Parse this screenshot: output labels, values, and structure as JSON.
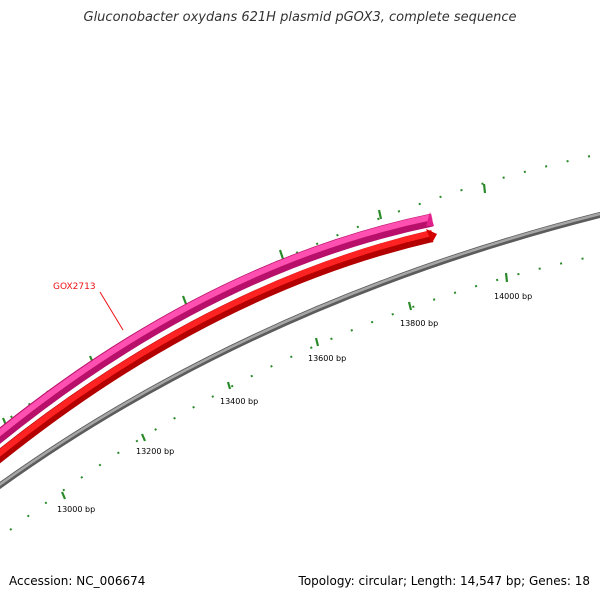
{
  "title": "Gluconobacter oxydans 621H plasmid pGOX3, complete sequence",
  "accession": "Accession: NC_006674",
  "summary": "Topology: circular; Length: 14,547 bp; Genes: 18",
  "tick_labels": [
    "13000 bp",
    "13200 bp",
    "13400 bp",
    "13600 bp",
    "13800 bp",
    "14000 bp"
  ],
  "gene_label": "GOX2713",
  "colors": {
    "backbone": "#8c8c8c",
    "forward_feature": "#ee2a91",
    "reverse_feature": "#ee1111",
    "ticks": "#2a8a2a",
    "gene_label": "#ee1111"
  }
}
